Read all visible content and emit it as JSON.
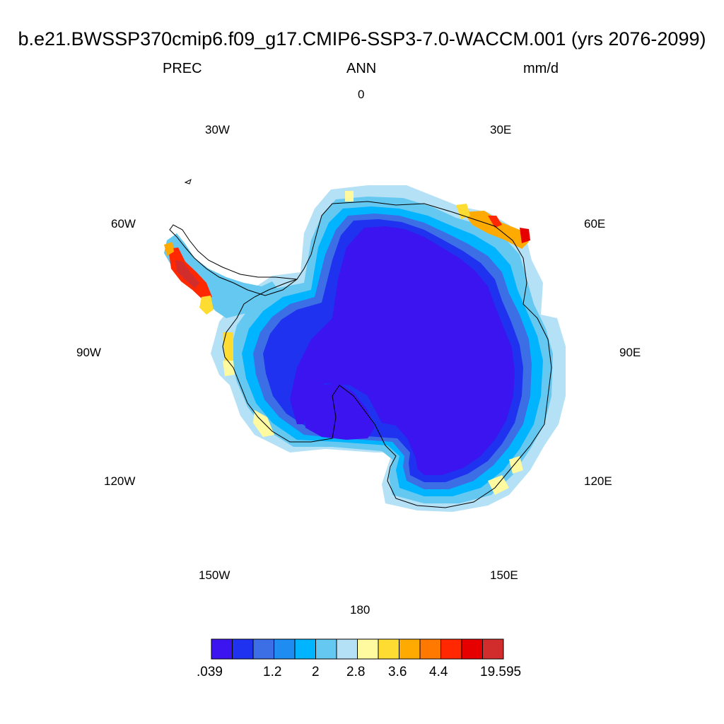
{
  "title": "b.e21.BWSSP370cmip6.f09_g17.CMIP6-SSP3-7.0-WACCM.001 (yrs 2076-2099)",
  "left_string": "PREC",
  "center_string": "ANN",
  "right_string": "mm/d",
  "lon_labels": {
    "l0": "0",
    "l30e": "30E",
    "l60e": "60E",
    "l90e": "90E",
    "l120e": "120E",
    "l150e": "150E",
    "l180": "180",
    "l150w": "150W",
    "l120w": "120W",
    "l90w": "90W",
    "l60w": "60W",
    "l30w": "30W"
  },
  "colorbar": {
    "colors": [
      "#3c14f0",
      "#1e32f0",
      "#3c6ee6",
      "#1e8cf0",
      "#00b4ff",
      "#64c8f0",
      "#b4e1f5",
      "#fffaa0",
      "#ffdc32",
      "#ffaa00",
      "#ff7800",
      "#ff2800",
      "#e60000",
      "#d22d2d"
    ],
    "labels": {
      "v0": ".039",
      "v1": "1.2",
      "v2": "2",
      "v3": "2.8",
      "v4": "3.6",
      "v5": "4.4",
      "v6": "19.595"
    }
  }
}
